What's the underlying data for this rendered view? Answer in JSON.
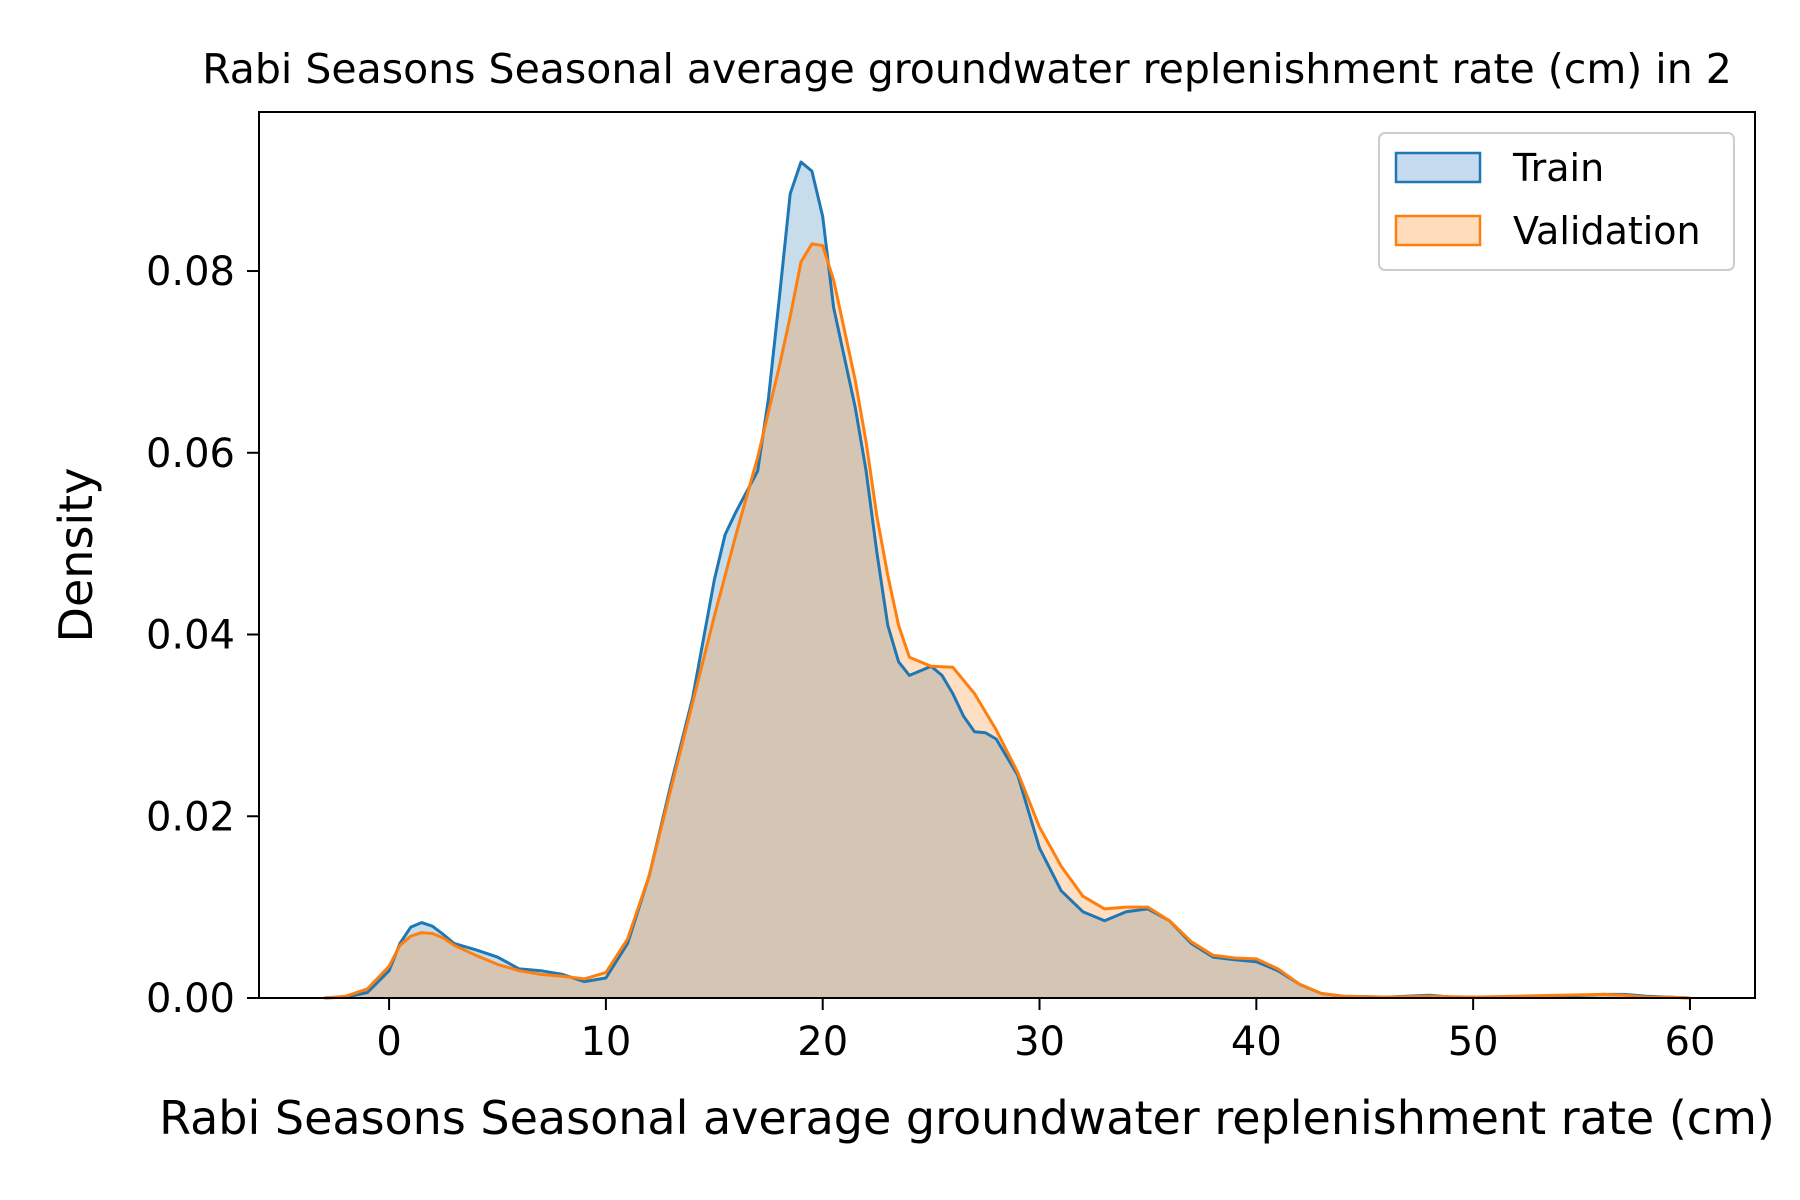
{
  "chart_data": {
    "type": "area",
    "title": "Rabi Seasons Seasonal average groundwater replenishment rate (cm) in 2",
    "xlabel": "Rabi Seasons Seasonal average groundwater replenishment rate (cm)",
    "ylabel": "Density",
    "xlim": [
      -6,
      63
    ],
    "ylim": [
      0,
      0.0975
    ],
    "x_ticks": [
      0,
      10,
      20,
      30,
      40,
      50,
      60
    ],
    "x_tick_labels": [
      "0",
      "10",
      "20",
      "30",
      "40",
      "50",
      "60"
    ],
    "y_ticks": [
      0,
      0.02,
      0.04,
      0.06,
      0.08
    ],
    "y_tick_labels": [
      "0.00",
      "0.02",
      "0.04",
      "0.06",
      "0.08"
    ],
    "grid": false,
    "legend_position": "top-right",
    "series": [
      {
        "name": "Train",
        "color": "#1f77b4",
        "fill_color": "#c6dbef",
        "x": [
          -3,
          -2,
          -1,
          0,
          0.5,
          1,
          1.5,
          2,
          2.5,
          3,
          4,
          5,
          6,
          7,
          8,
          9,
          10,
          11,
          12,
          13,
          14,
          15,
          15.5,
          16,
          17,
          17.5,
          18,
          18.5,
          19,
          19.5,
          20,
          20.5,
          21,
          21.5,
          22,
          22.5,
          23,
          23.5,
          24,
          24.5,
          25,
          25.5,
          26,
          26.5,
          27,
          27.5,
          28,
          29,
          30,
          31,
          32,
          33,
          34,
          35,
          36,
          37,
          38,
          39,
          40,
          41,
          42,
          43,
          44,
          46,
          48,
          49,
          50,
          52,
          54,
          56,
          57,
          58,
          59,
          60
        ],
        "values": [
          0,
          0.0001,
          0.0006,
          0.003,
          0.006,
          0.0078,
          0.0083,
          0.0079,
          0.007,
          0.006,
          0.0053,
          0.0045,
          0.0032,
          0.003,
          0.0026,
          0.0018,
          0.0022,
          0.006,
          0.0135,
          0.0235,
          0.033,
          0.046,
          0.051,
          0.0535,
          0.058,
          0.066,
          0.077,
          0.0885,
          0.092,
          0.091,
          0.086,
          0.076,
          0.0705,
          0.065,
          0.058,
          0.049,
          0.041,
          0.037,
          0.0355,
          0.036,
          0.0365,
          0.0355,
          0.0335,
          0.031,
          0.0293,
          0.0292,
          0.0285,
          0.0245,
          0.0165,
          0.0118,
          0.0095,
          0.0085,
          0.0095,
          0.0098,
          0.0085,
          0.006,
          0.0045,
          0.0042,
          0.004,
          0.003,
          0.0015,
          0.0005,
          0.0002,
          0.0001,
          0.0003,
          0.0001,
          0.0001,
          0.0001,
          0.0002,
          0.0004,
          0.0004,
          0.0002,
          0.0001,
          0
        ]
      },
      {
        "name": "Validation",
        "color": "#ff7f0e",
        "fill_color": "#ffdcbc",
        "x": [
          -3,
          -2,
          -1,
          0,
          0.5,
          1,
          1.5,
          2,
          2.5,
          3,
          4,
          5,
          6,
          7,
          8,
          9,
          10,
          11,
          12,
          13,
          14,
          15,
          16,
          17,
          18,
          18.5,
          19,
          19.5,
          20,
          20.5,
          21,
          21.5,
          22,
          22.5,
          23,
          23.5,
          24,
          25,
          26,
          27,
          28,
          29,
          30,
          31,
          32,
          33,
          34,
          35,
          36,
          37,
          38,
          39,
          40,
          41,
          42,
          43,
          44,
          46,
          48,
          50,
          52,
          54,
          56,
          57,
          58,
          59,
          60
        ],
        "values": [
          0,
          0.0002,
          0.001,
          0.0035,
          0.0058,
          0.0068,
          0.0072,
          0.0071,
          0.0066,
          0.0058,
          0.0047,
          0.0037,
          0.003,
          0.0026,
          0.0024,
          0.0021,
          0.0028,
          0.0065,
          0.0135,
          0.023,
          0.0325,
          0.042,
          0.051,
          0.0595,
          0.0695,
          0.075,
          0.081,
          0.083,
          0.0828,
          0.079,
          0.0735,
          0.068,
          0.0612,
          0.053,
          0.0465,
          0.041,
          0.0375,
          0.0365,
          0.0364,
          0.0335,
          0.0295,
          0.0248,
          0.0188,
          0.0145,
          0.0112,
          0.0098,
          0.01,
          0.01,
          0.0085,
          0.0062,
          0.0047,
          0.0044,
          0.0043,
          0.0032,
          0.0015,
          0.0005,
          0.0002,
          0.0001,
          0.0002,
          0.0001,
          0.0002,
          0.0003,
          0.0004,
          0.0003,
          0.0001,
          0.0001,
          0
        ]
      }
    ]
  }
}
